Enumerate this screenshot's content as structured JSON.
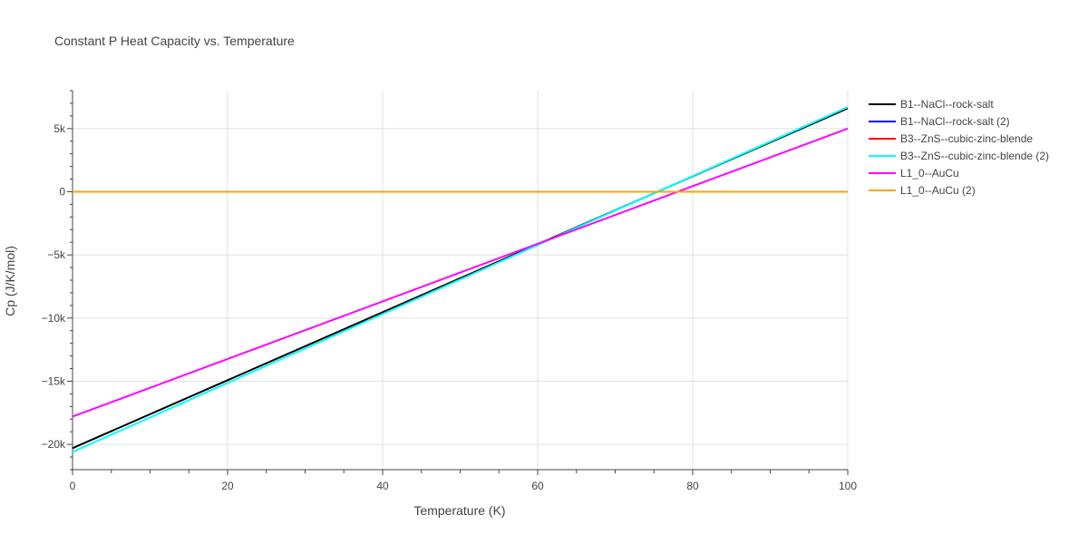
{
  "chart_data": {
    "type": "line",
    "title": "Constant P Heat Capacity vs. Temperature",
    "xlabel": "Temperature (K)",
    "ylabel": "Cp (J/K/mol)",
    "xlim": [
      0,
      100
    ],
    "ylim": [
      -22000,
      8000
    ],
    "x_ticks": [
      0,
      20,
      40,
      60,
      80,
      100
    ],
    "x_tick_labels": [
      "0",
      "20",
      "40",
      "60",
      "80",
      "100"
    ],
    "y_ticks": [
      -20000,
      -15000,
      -10000,
      -5000,
      0,
      5000
    ],
    "y_tick_labels": [
      "−20k",
      "−15k",
      "−10k",
      "−5k",
      "0",
      "5k"
    ],
    "grid": true,
    "legend_position": "right",
    "series": [
      {
        "name": "B1--NaCl--rock-salt",
        "color": "#000000",
        "x": [
          0,
          100
        ],
        "y": [
          -20300,
          6600
        ]
      },
      {
        "name": "B1--NaCl--rock-salt (2)",
        "color": "#0000ff",
        "x": [
          0,
          100
        ],
        "y": [
          0,
          0
        ]
      },
      {
        "name": "B3--ZnS--cubic-zinc-blende",
        "color": "#ff0000",
        "x": [
          0,
          100
        ],
        "y": [
          0,
          0
        ]
      },
      {
        "name": "B3--ZnS--cubic-zinc-blende (2)",
        "color": "#00ffff",
        "x": [
          0,
          100
        ],
        "y": [
          -20600,
          6700
        ]
      },
      {
        "name": "L1_0--AuCu",
        "color": "#ff00ff",
        "x": [
          0,
          100
        ],
        "y": [
          -17800,
          5000
        ]
      },
      {
        "name": "L1_0--AuCu (2)",
        "color": "#ffa500",
        "x": [
          0,
          100
        ],
        "y": [
          0,
          0
        ]
      }
    ]
  }
}
